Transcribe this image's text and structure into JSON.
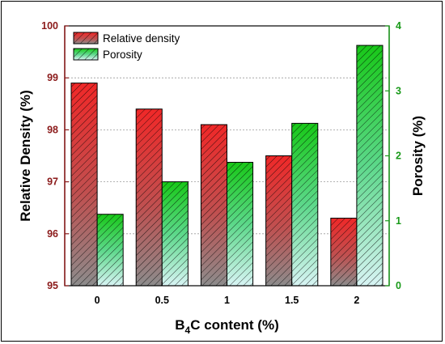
{
  "chart_data": {
    "type": "bar",
    "categories": [
      "0",
      "0.5",
      "1",
      "1.5",
      "2"
    ],
    "xlabel": "B4C content (%)",
    "ylabel_left": "Relative Density (%)",
    "ylabel_right": "Porosity (%)",
    "ylim_left": [
      95,
      100
    ],
    "ylim_right": [
      0,
      4
    ],
    "yticks_left": [
      95,
      96,
      97,
      98,
      99,
      100
    ],
    "yticks_right": [
      0,
      1,
      2,
      3,
      4
    ],
    "grid": "horizontal dotted, left axis",
    "legend_position": "top-left",
    "series": [
      {
        "name": "Relative density",
        "axis": "left",
        "color": "#e03a3a",
        "pattern": "diagonal hatch, gradient to gray",
        "values": [
          98.9,
          98.4,
          98.1,
          97.5,
          96.3
        ]
      },
      {
        "name": "Porosity",
        "axis": "right",
        "color": "#1ec21e",
        "pattern": "diagonal hatch, gradient to light cyan",
        "values": [
          1.1,
          1.6,
          1.9,
          2.5,
          3.7
        ]
      }
    ]
  },
  "axis_colors": {
    "left": "#8b1a1a",
    "right": "#1a9a1a"
  }
}
